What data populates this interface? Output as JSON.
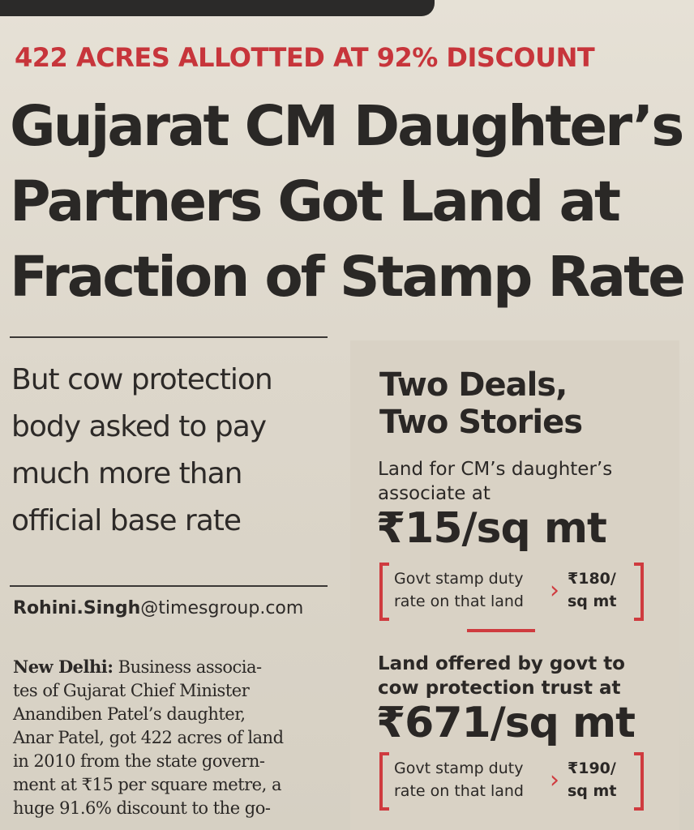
{
  "kicker": "422 ACRES ALLOTTED AT 92% DISCOUNT",
  "headline": {
    "line1": "Gujarat CM Daughter’s",
    "line2": "Partners Got Land at",
    "line3": "Fraction of Stamp Rate"
  },
  "deck": {
    "line1": "But cow protection",
    "line2": "body asked to pay",
    "line3": "much more than",
    "line4": "official base rate"
  },
  "byline": {
    "name": "Rohini.Singh",
    "domain": "@timesgroup.com"
  },
  "body": {
    "dateline": "New Delhi:",
    "line1": " Business associa-",
    "line2": "tes of Gujarat Chief Minister",
    "line3": "Anandiben Patel’s daughter,",
    "line4": "Anar Patel, got 422 acres of land",
    "line5": "in 2010 from the state govern-",
    "line6": "ment at ₹15 per square metre, a",
    "line7": "huge 91.6% discount to the go-"
  },
  "sidebar": {
    "title_line1": "Two Deals,",
    "title_line2": "Two Stories",
    "deal1": {
      "label_line1": "Land for CM’s daughter’s",
      "label_line2": "associate at",
      "price": "₹15/sq mt",
      "stamp_label_line1": "Govt stamp duty",
      "stamp_label_line2": "rate on that land",
      "stamp_value_line1": "₹180/",
      "stamp_value_line2": "sq mt"
    },
    "deal2": {
      "label_line1": "Land offered by govt to",
      "label_line2": "cow protection trust at",
      "price": "₹671/sq mt",
      "stamp_label_line1": "Govt stamp duty",
      "stamp_label_line2": "rate on that land",
      "stamp_value_line1": "₹190/",
      "stamp_value_line2": "sq mt"
    }
  },
  "colors": {
    "accent_red": "#c7353b",
    "ink": "#2a2725",
    "paper": "#e2ddd2"
  }
}
